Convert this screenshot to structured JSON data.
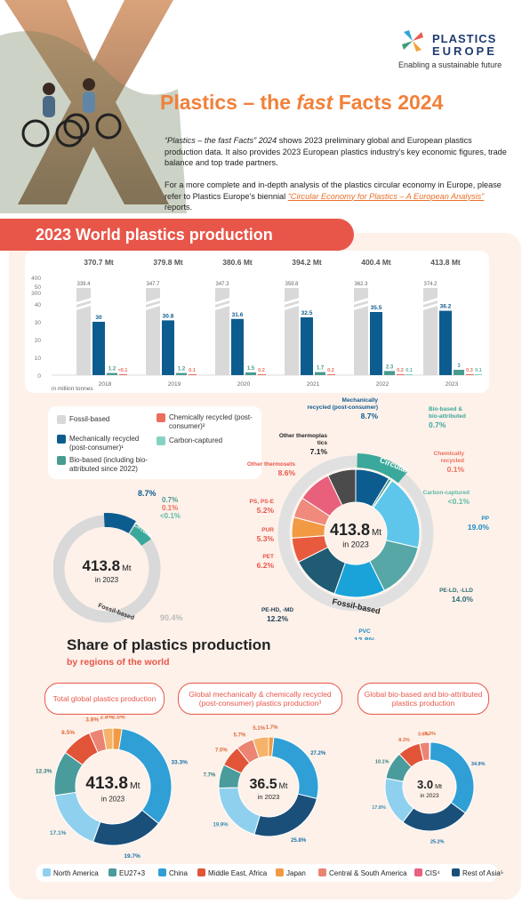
{
  "header": {
    "brand_line1": "PLASTICS",
    "brand_line2": "EUROPE",
    "tagline": "Enabling a sustainable future",
    "title_part1": "Plastics – the ",
    "title_fast": "fast",
    "title_part2": " Facts 2024",
    "intro_p1_em": "“Plastics – the fast Facts” 2024",
    "intro_p1_rest": " shows 2023 preliminary global and European plastics production data. It also provides 2023 European plastics industry’s key economic figures, trade balance and top trade partners.",
    "intro_p2_start": "For a more complete and in-depth analysis of the plastics circular economy in Europe, please refer to Plastics Europe’s biennial ",
    "intro_p2_link": "“Circular Economy for Plastics – A European Analysis”",
    "intro_p2_end": " reports."
  },
  "section_world": {
    "banner": "2023 World plastics production"
  },
  "colors": {
    "fossil": "#d9d9d9",
    "mech": "#0d5c8f",
    "bio": "#4a9b8f",
    "chem": "#ec6f5c",
    "carbon": "#86d3c3",
    "accent": "#f0813b",
    "red": "#e8564a"
  },
  "chart_data": [
    {
      "type": "bar",
      "id": "world-production-by-year",
      "categories": [
        "2018",
        "2019",
        "2020",
        "2021",
        "2022",
        "2023"
      ],
      "totals": [
        "370.7 Mt",
        "379.8 Mt",
        "380.6 Mt",
        "394.2 Mt",
        "400.4 Mt",
        "413.8 Mt"
      ],
      "series": [
        {
          "name": "Fossil-based",
          "values": [
            339.4,
            347.7,
            347.3,
            359.8,
            362.3,
            374.2
          ],
          "labels": [
            "339.4",
            "347.7",
            "347.3",
            "359.8",
            "362.3",
            "374.2"
          ]
        },
        {
          "name": "Mechanically recycled (post-consumer)",
          "values": [
            30,
            30.8,
            31.6,
            32.5,
            35.5,
            36.2
          ],
          "labels": [
            "30",
            "30.8",
            "31.6",
            "32.5",
            "35.5",
            "36.2"
          ]
        },
        {
          "name": "Bio-based (including bio-attributed since 2022)",
          "values": [
            1.2,
            1.2,
            1.5,
            1.7,
            2.3,
            3
          ],
          "labels": [
            "1.2",
            "1.2",
            "1.5",
            "1.7",
            "2.3",
            "3"
          ]
        },
        {
          "name": "Chemically recycled (post-consumer)",
          "values": [
            0.1,
            0.1,
            0.2,
            0.2,
            0.2,
            0.3
          ],
          "labels": [
            "<0.1",
            "0.1",
            "0.2",
            "0.2",
            "0.2",
            "0.3"
          ]
        },
        {
          "name": "Carbon-captured",
          "values": [
            null,
            null,
            null,
            null,
            0.1,
            0.1
          ],
          "labels": [
            "",
            "",
            "",
            "",
            "0.1",
            "0.1"
          ]
        }
      ],
      "y_ticks": [
        "400",
        "300",
        "50",
        "40",
        "30",
        "20",
        "10",
        "0"
      ],
      "y_break": true,
      "ylabel": "in million tonnes",
      "legend": [
        "Fossil-based",
        "Mechanically recycled (post-consumer)¹",
        "Bio-based (including bio-attributed since 2022)",
        "Chemically recycled (post-consumer)²",
        "Carbon-captured"
      ]
    },
    {
      "type": "pie",
      "id": "origin-donut",
      "center_value": "413.8",
      "center_unit": "Mt",
      "center_sub": "in 2023",
      "arc_labels": [
        "Circular",
        "Fossil-based"
      ],
      "slices": [
        {
          "label": "Fossil-based",
          "value": 90.4,
          "text": "90.4%"
        },
        {
          "label": "Mechanically recycled",
          "value": 8.7,
          "text": "8.7%"
        },
        {
          "label": "Bio-based",
          "value": 0.7,
          "text": "0.7%"
        },
        {
          "label": "Chemically recycled",
          "value": 0.1,
          "text": "0.1%"
        },
        {
          "label": "Carbon-captured",
          "value": 0.1,
          "text": "<0.1%"
        }
      ]
    },
    {
      "type": "pie",
      "id": "polymer-donut",
      "center_value": "413.8",
      "center_unit": "Mt",
      "center_sub": "in 2023",
      "arc_labels": [
        "Circular",
        "Fossil-based"
      ],
      "slices": [
        {
          "label": "Mechanically recycled (post-consumer)",
          "value": 8.7,
          "text": "8.7%"
        },
        {
          "label": "Bio-based & bio-attributed",
          "value": 0.7,
          "text": "0.7%"
        },
        {
          "label": "Chemically recycled",
          "value": 0.1,
          "text": "0.1%"
        },
        {
          "label": "Carbon-captured",
          "value": 0.1,
          "text": "<0.1%"
        },
        {
          "label": "PP",
          "value": 19.0,
          "text": "19.0%"
        },
        {
          "label": "PE-LD, -LLD",
          "value": 14.0,
          "text": "14.0%"
        },
        {
          "label": "PVC",
          "value": 12.8,
          "text": "12.8%"
        },
        {
          "label": "PE-HD, -MD",
          "value": 12.2,
          "text": "12.2%"
        },
        {
          "label": "PET",
          "value": 6.2,
          "text": "6.2%"
        },
        {
          "label": "PUR",
          "value": 5.3,
          "text": "5.3%"
        },
        {
          "label": "PS, PS-E",
          "value": 5.2,
          "text": "5.2%"
        },
        {
          "label": "Other thermosets",
          "value": 8.6,
          "text": "8.6%"
        },
        {
          "label": "Other thermoplastics",
          "value": 7.1,
          "text": "7.1%"
        }
      ]
    },
    {
      "type": "pie",
      "id": "region-total",
      "title": "Total global plastics production",
      "center_value": "413.8",
      "center_unit": "Mt",
      "center_sub": "in 2023",
      "slices": [
        {
          "label": "Rest of Asia",
          "value": 2.5,
          "text": "2.5%"
        },
        {
          "label": "China",
          "value": 33.3,
          "text": "33.3%"
        },
        {
          "label": "North America",
          "value": 19.7,
          "text": "19.7%"
        },
        {
          "label": "EU27+3",
          "value": 17.1,
          "text": "17.1%"
        },
        {
          "label": "Middle East, Africa",
          "value": 12.3,
          "text": "12.3%"
        },
        {
          "label": "Central & South America",
          "value": 8.5,
          "text": "8.5%"
        },
        {
          "label": "Japan",
          "value": 3.8,
          "text": "3.8%"
        },
        {
          "label": "CIS",
          "value": 2.8,
          "text": "2.8%"
        }
      ]
    },
    {
      "type": "pie",
      "id": "region-recycled",
      "title": "Global mechanically & chemically recycled (post-consumer) plastics production³",
      "center_value": "36.5",
      "center_unit": "Mt",
      "center_sub": "in 2023",
      "slices": [
        {
          "label": "Rest of Asia",
          "value": 1.7,
          "text": "1.7%"
        },
        {
          "label": "China",
          "value": 27.2,
          "text": "27.2%"
        },
        {
          "label": "North America",
          "value": 25.8,
          "text": "25.8%"
        },
        {
          "label": "EU27+3",
          "value": 19.9,
          "text": "19.9%"
        },
        {
          "label": "Middle East, Africa",
          "value": 7.7,
          "text": "7.7%"
        },
        {
          "label": "Central & South America",
          "value": 7.0,
          "text": "7.0%"
        },
        {
          "label": "Japan",
          "value": 5.7,
          "text": "5.7%"
        },
        {
          "label": "CIS",
          "value": 5.1,
          "text": "5.1%"
        }
      ]
    },
    {
      "type": "pie",
      "id": "region-bio",
      "title": "Global bio-based and bio-attributed plastics production",
      "center_value": "3.0",
      "center_unit": "Mt",
      "center_sub": "in 2023",
      "slices": [
        {
          "label": "Rest of Asia",
          "value": 0.3,
          "text": "0.3%"
        },
        {
          "label": "China",
          "value": 34.9,
          "text": "34.9%"
        },
        {
          "label": "North America",
          "value": 25.2,
          "text": "25.2%"
        },
        {
          "label": "EU27+3",
          "value": 17.8,
          "text": "17.8%"
        },
        {
          "label": "Middle East, Africa",
          "value": 10.1,
          "text": "10.1%"
        },
        {
          "label": "Central & South America",
          "value": 8.3,
          "text": "8.3%"
        },
        {
          "label": "Japan",
          "value": 3.6,
          "text": "3.6%"
        }
      ]
    }
  ],
  "share": {
    "title": "Share of plastics production",
    "subtitle": "by regions of the world"
  },
  "region_legend": [
    {
      "label": "North America",
      "color": "#8fd0ef"
    },
    {
      "label": "EU27+3",
      "color": "#4a9b9b"
    },
    {
      "label": "China",
      "color": "#2f9fd6"
    },
    {
      "label": "Middle East, Africa",
      "color": "#e25438"
    },
    {
      "label": "Japan",
      "color": "#f29a43"
    },
    {
      "label": "Central & South America",
      "color": "#ec8474"
    },
    {
      "label": "CIS⁴",
      "color": "#e8607c"
    },
    {
      "label": "Rest of Asia⁵",
      "color": "#1a4f7a"
    }
  ],
  "region_colors": {
    "Rest of Asia": "#f29a43",
    "China": "#2f9fd6",
    "North America": "#1a4f7a",
    "EU27+3": "#8fd0ef",
    "Middle East, Africa": "#4a9b9b",
    "Central & South America": "#e25438",
    "Japan": "#ec8474",
    "CIS": "#f5b36a"
  }
}
